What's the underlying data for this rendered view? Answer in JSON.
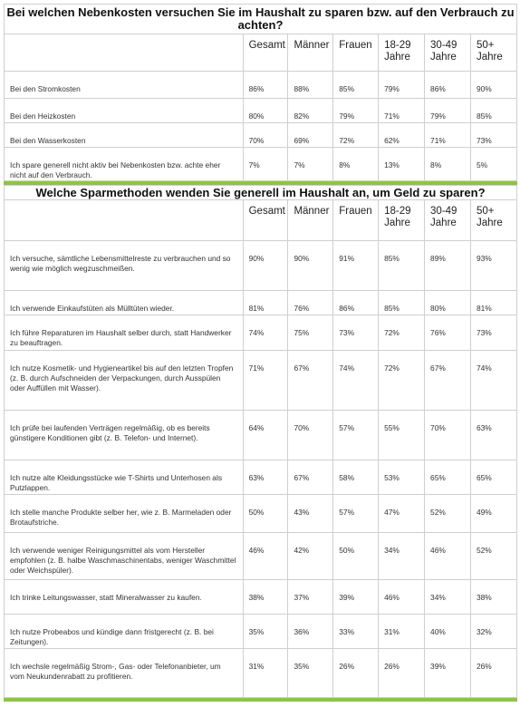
{
  "table1": {
    "title": "Bei welchen Nebenkosten versuchen Sie im Haushalt zu sparen bzw. auf den Verbrauch zu achten?",
    "headers": [
      "",
      "Gesamt",
      "Männer",
      "Frauen",
      "18-29 Jahre",
      "30-49 Jahre",
      "50+ Jahre"
    ],
    "rows": [
      {
        "label": "Bei den Stromkosten",
        "values": [
          "86%",
          "88%",
          "85%",
          "79%",
          "86%",
          "90%"
        ]
      },
      {
        "label": "Bei den Heizkosten",
        "values": [
          "80%",
          "82%",
          "79%",
          "71%",
          "79%",
          "85%"
        ]
      },
      {
        "label": "Bei den Wasserkosten",
        "values": [
          "70%",
          "69%",
          "72%",
          "62%",
          "71%",
          "73%"
        ]
      },
      {
        "label": "Ich spare generell nicht aktiv bei Nebenkosten bzw. achte eher nicht auf den Verbrauch.",
        "values": [
          "7%",
          "7%",
          "8%",
          "13%",
          "8%",
          "5%"
        ]
      }
    ]
  },
  "table2": {
    "title": "Welche Sparmethoden wenden Sie generell im Haushalt an, um Geld zu sparen?",
    "headers": [
      "",
      "Gesamt",
      "Männer",
      "Frauen",
      "18-29 Jahre",
      "30-49 Jahre",
      "50+ Jahre"
    ],
    "rows": [
      {
        "label": "Ich versuche, sämtliche Lebensmittelreste zu verbrauchen und so wenig wie möglich wegzuschmeißen.",
        "values": [
          "90%",
          "90%",
          "91%",
          "85%",
          "89%",
          "93%"
        ]
      },
      {
        "label": "Ich verwende Einkaufstüten als Mülltüten wieder.",
        "values": [
          "81%",
          "76%",
          "86%",
          "85%",
          "80%",
          "81%"
        ]
      },
      {
        "label": "Ich führe Reparaturen im Haushalt selber durch, statt Handwerker zu beauftragen.",
        "values": [
          "74%",
          "75%",
          "73%",
          "72%",
          "76%",
          "73%"
        ]
      },
      {
        "label": "Ich nutze Kosmetik- und Hygieneartikel bis auf den letzten Tropfen (z. B. durch Aufschneiden der Verpackungen, durch Ausspülen oder Auffüllen mit Wasser).",
        "values": [
          "71%",
          "67%",
          "74%",
          "72%",
          "67%",
          "74%"
        ]
      },
      {
        "label": "Ich prüfe bei laufenden Verträgen regelmäßig, ob es bereits günstigere Konditionen gibt (z. B. Telefon- und Internet).",
        "values": [
          "64%",
          "70%",
          "57%",
          "55%",
          "70%",
          "63%"
        ]
      },
      {
        "label": "Ich nutze alte Kleidungsstücke wie T-Shirts und Unterhosen als Putzlappen.",
        "values": [
          "63%",
          "67%",
          "58%",
          "53%",
          "65%",
          "65%"
        ]
      },
      {
        "label": "Ich stelle manche Produkte selber her, wie z. B. Marmeladen oder Brotaufstriche.",
        "values": [
          "50%",
          "43%",
          "57%",
          "47%",
          "52%",
          "49%"
        ]
      },
      {
        "label": "Ich verwende weniger Reinigungsmittel als vom Hersteller empfohlen (z. B. halbe Waschmaschinentabs, weniger Waschmittel oder Weichspüler).",
        "values": [
          "46%",
          "42%",
          "50%",
          "34%",
          "46%",
          "52%"
        ]
      },
      {
        "label": "Ich trinke Leitungswasser, statt Mineralwasser zu kaufen.",
        "values": [
          "38%",
          "37%",
          "39%",
          "46%",
          "34%",
          "38%"
        ]
      },
      {
        "label": "Ich nutze Probeabos und kündige dann fristgerecht (z. B. bei Zeitungen).",
        "values": [
          "35%",
          "36%",
          "33%",
          "31%",
          "40%",
          "32%"
        ]
      },
      {
        "label": "Ich wechsle regelmäßig Strom-, Gas- oder Telefonanbieter, um vom Neukundenrabatt zu profitieren.",
        "values": [
          "31%",
          "35%",
          "26%",
          "26%",
          "39%",
          "26%"
        ]
      }
    ]
  }
}
